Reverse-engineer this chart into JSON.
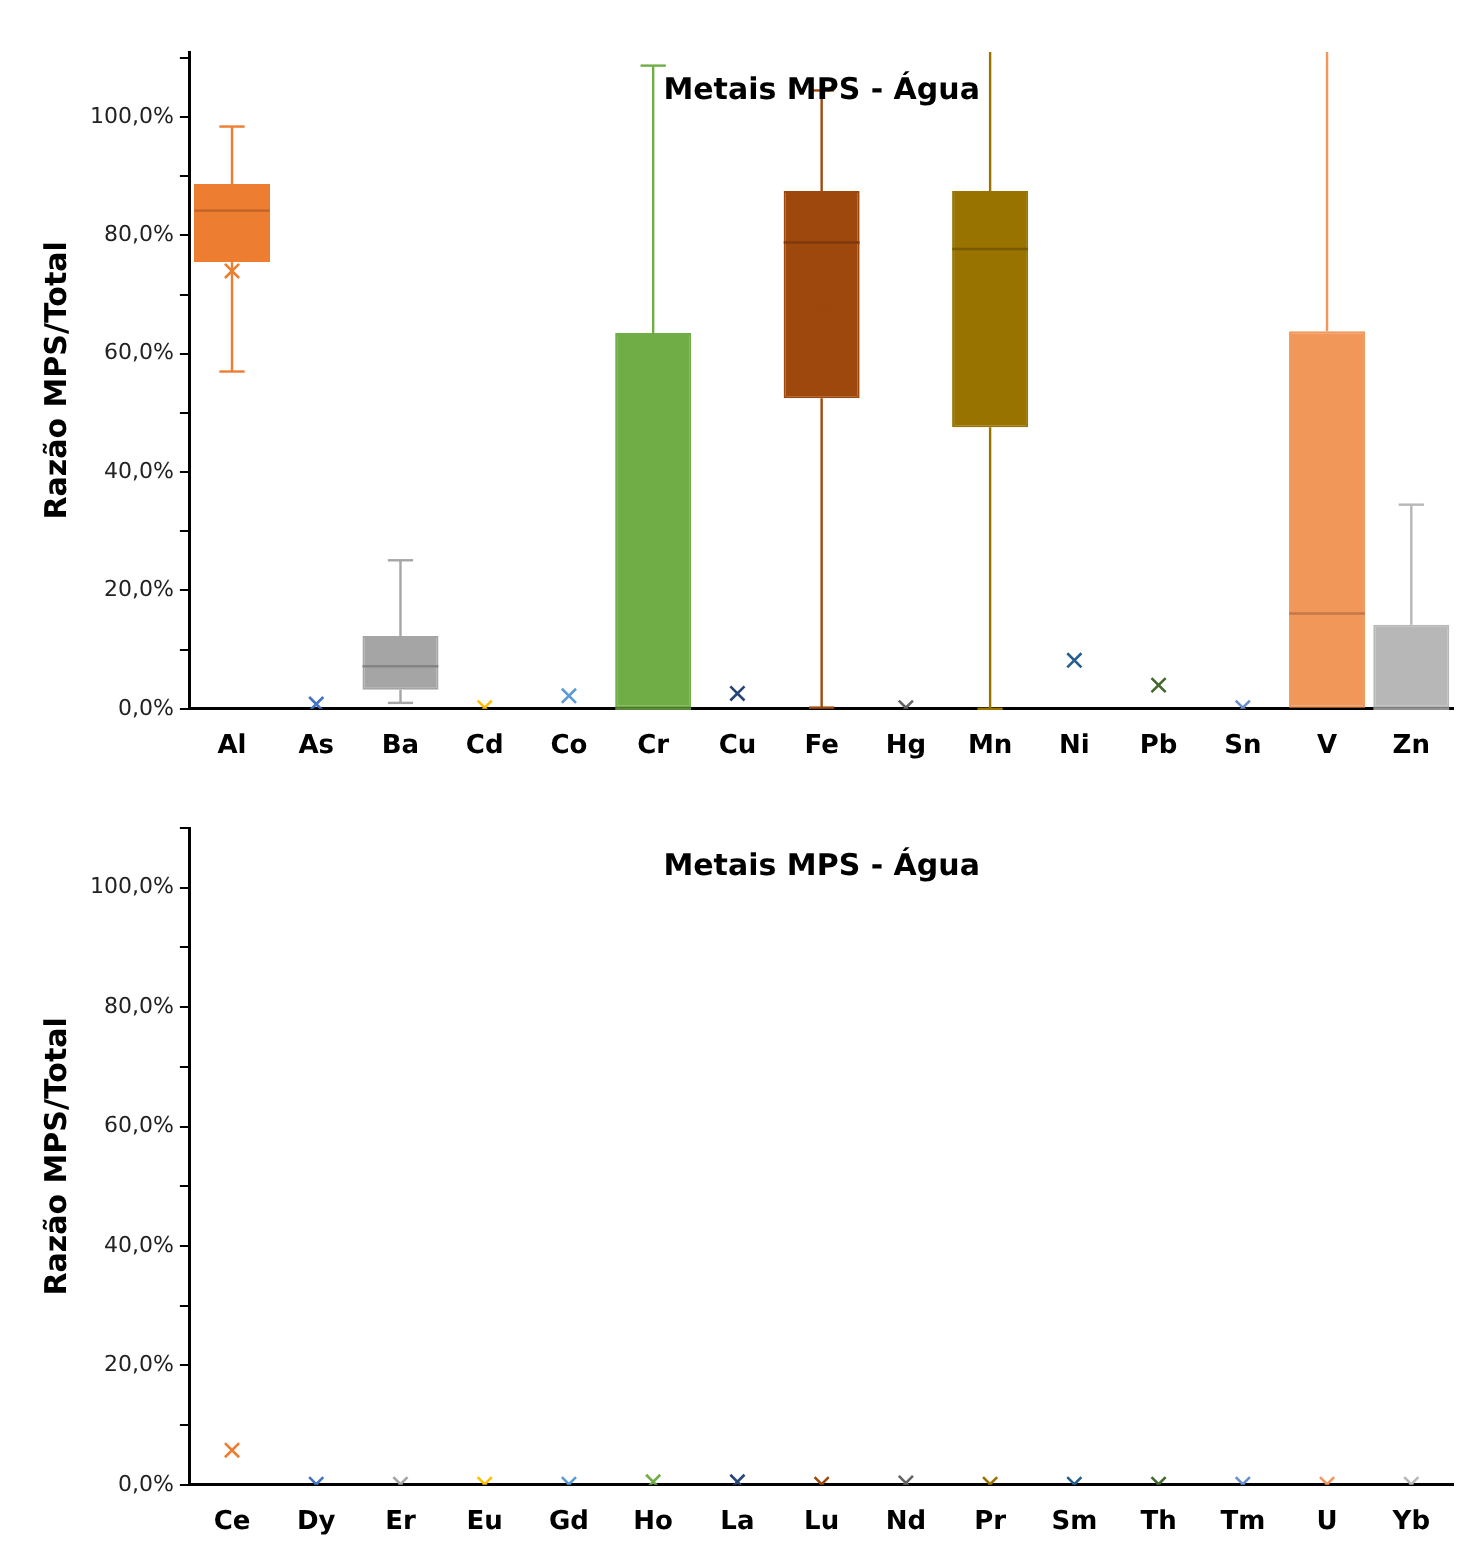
{
  "chart_data": [
    {
      "type": "box",
      "title": "Metais MPS - Água",
      "ylabel": "Razão MPS/Total",
      "categories": [
        "Al",
        "As",
        "Ba",
        "Cd",
        "Co",
        "Cr",
        "Cu",
        "Fe",
        "Hg",
        "Mn",
        "Ni",
        "Pb",
        "Sn",
        "V",
        "Zn"
      ],
      "colors": [
        "#ed7d31",
        "#4472c4",
        "#a5a5a5",
        "#ffc000",
        "#5b9bd5",
        "#70ad47",
        "#264478",
        "#9e480e",
        "#636363",
        "#997300",
        "#255e91",
        "#43682b",
        "#698ed0",
        "#f1975a",
        "#b7b7b7"
      ],
      "boxes": [
        {
          "low": 57,
          "q1": 75.5,
          "median": 84.2,
          "q3": 88.7,
          "high": 98.4,
          "mean": 74
        },
        null,
        {
          "low": 1,
          "q1": 3.2,
          "median": 7.2,
          "q3": 12.3,
          "high": 25.1,
          "mean": 8.6
        },
        null,
        null,
        {
          "low": 0,
          "q1": 0,
          "median": 0,
          "q3": 63.5,
          "high": 108.7,
          "mean": 25.5
        },
        null,
        {
          "low": 0.2,
          "q1": 52.5,
          "median": 78.8,
          "q3": 87.5,
          "high": 104.5,
          "mean": 68
        },
        null,
        {
          "low": 0,
          "q1": 47.6,
          "median": 77.7,
          "q3": 87.5,
          "high": 111,
          "mean": 77.3
        },
        null,
        null,
        null,
        {
          "low": 0,
          "q1": 0,
          "median": 16.1,
          "q3": 63.8,
          "high": 111,
          "mean": 47.3
        },
        {
          "low": 0,
          "q1": 0,
          "median": 0,
          "q3": 14.2,
          "high": 34.5,
          "mean": 8.9
        }
      ],
      "series": [
        {
          "type": "scatter",
          "x": [
            "As",
            "Cd",
            "Co",
            "Cu",
            "Hg",
            "Ni",
            "Pb",
            "Sn"
          ],
          "values": [
            0.8,
            0.2,
            2.2,
            2.6,
            0.2,
            8.2,
            4,
            0.2
          ],
          "colors": [
            "#4472c4",
            "#ffc000",
            "#5b9bd5",
            "#264478",
            "#636363",
            "#255e91",
            "#43682b",
            "#698ed0"
          ]
        }
      ],
      "ylim": [
        0,
        111
      ],
      "yticks": [
        {
          "value": 0,
          "label": "0,0%"
        },
        {
          "value": 10,
          "label": null
        },
        {
          "value": 20,
          "label": "20,0%"
        },
        {
          "value": 30,
          "label": null
        },
        {
          "value": 40,
          "label": "40,0%"
        },
        {
          "value": 50,
          "label": null
        },
        {
          "value": 60,
          "label": "60,0%"
        },
        {
          "value": 70,
          "label": null
        },
        {
          "value": 80,
          "label": "80,0%"
        },
        {
          "value": 90,
          "label": null
        },
        {
          "value": 100,
          "label": "100,0%"
        },
        {
          "value": 110,
          "label": null
        }
      ],
      "marker": "cross"
    },
    {
      "type": "scatter",
      "title": "Metais MPS - Água",
      "ylabel": "Razão MPS/Total",
      "categories": [
        "Ce",
        "Dy",
        "Er",
        "Eu",
        "Gd",
        "Ho",
        "La",
        "Lu",
        "Nd",
        "Pr",
        "Sm",
        "Th",
        "Tm",
        "U",
        "Yb"
      ],
      "values": [
        5.8,
        0.1,
        0.1,
        0.1,
        0.1,
        0.5,
        0.5,
        0.1,
        0.3,
        0.1,
        0.1,
        0.1,
        0.1,
        0.1,
        0.1
      ],
      "colors": [
        "#ed7d31",
        "#4472c4",
        "#a5a5a5",
        "#ffc000",
        "#5b9bd5",
        "#70ad47",
        "#264478",
        "#9e480e",
        "#636363",
        "#997300",
        "#255e91",
        "#43682b",
        "#698ed0",
        "#f1975a",
        "#b7b7b7"
      ],
      "ylim": [
        0,
        110
      ],
      "yticks": [
        {
          "value": 0,
          "label": "0,0%"
        },
        {
          "value": 10,
          "label": null
        },
        {
          "value": 20,
          "label": "20,0%"
        },
        {
          "value": 30,
          "label": null
        },
        {
          "value": 40,
          "label": "40,0%"
        },
        {
          "value": 50,
          "label": null
        },
        {
          "value": 60,
          "label": "60,0%"
        },
        {
          "value": 70,
          "label": null
        },
        {
          "value": 80,
          "label": "80,0%"
        },
        {
          "value": 90,
          "label": null
        },
        {
          "value": 100,
          "label": "100,0%"
        },
        {
          "value": 110,
          "label": null
        }
      ],
      "marker": "cross"
    }
  ]
}
